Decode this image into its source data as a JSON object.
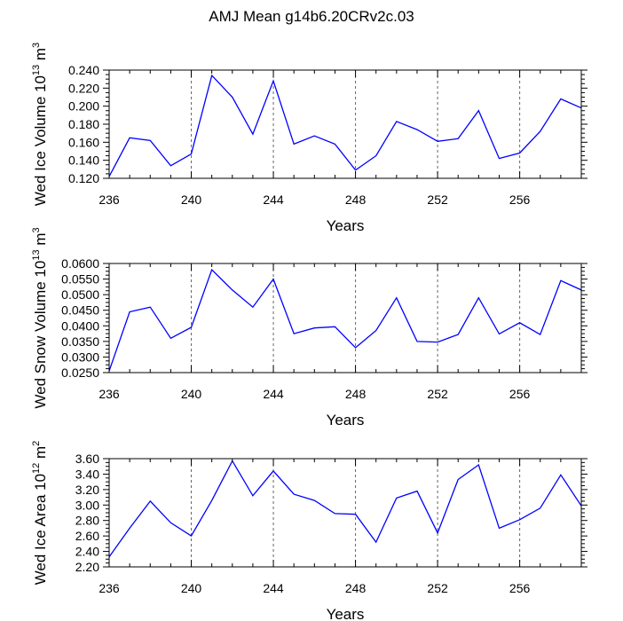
{
  "figure_title": "AMJ Mean g14b6.20CRv2c.03",
  "colors": {
    "line": "#0000ff",
    "axis": "#000000",
    "grid": "#666666"
  },
  "chart_data": [
    {
      "type": "line",
      "ylabel_main": "Wed Ice Volume 10",
      "ylabel_sup": "13",
      "ylabel_unit": " m",
      "ylabel_unit_sup": "3",
      "xlabel": "Years",
      "xlim": [
        236,
        259
      ],
      "ylim": [
        0.12,
        0.24
      ],
      "xticks": [
        236,
        240,
        244,
        248,
        252,
        256
      ],
      "xtick_labels": [
        "236",
        "240",
        "244",
        "248",
        "252",
        "256"
      ],
      "yticks": [
        0.12,
        0.14,
        0.16,
        0.18,
        0.2,
        0.22,
        0.24
      ],
      "ytick_labels": [
        "0.120",
        "0.140",
        "0.160",
        "0.180",
        "0.200",
        "0.220",
        "0.240"
      ],
      "grid_x": [
        240,
        244,
        248,
        252,
        256
      ],
      "x": [
        236,
        237,
        238,
        239,
        240,
        241,
        242,
        243,
        244,
        245,
        246,
        247,
        248,
        249,
        250,
        251,
        252,
        253,
        254,
        255,
        256,
        257,
        258,
        259
      ],
      "values": [
        0.122,
        0.165,
        0.162,
        0.134,
        0.147,
        0.234,
        0.21,
        0.169,
        0.228,
        0.158,
        0.167,
        0.158,
        0.129,
        0.145,
        0.183,
        0.174,
        0.161,
        0.164,
        0.195,
        0.142,
        0.148,
        0.172,
        0.208,
        0.198
      ]
    },
    {
      "type": "line",
      "ylabel_main": "Wed Snow Volume 10",
      "ylabel_sup": "13",
      "ylabel_unit": " m",
      "ylabel_unit_sup": "3",
      "xlabel": "Years",
      "xlim": [
        236,
        259
      ],
      "ylim": [
        0.025,
        0.06
      ],
      "xticks": [
        236,
        240,
        244,
        248,
        252,
        256
      ],
      "xtick_labels": [
        "236",
        "240",
        "244",
        "248",
        "252",
        "256"
      ],
      "yticks": [
        0.025,
        0.03,
        0.035,
        0.04,
        0.045,
        0.05,
        0.055,
        0.06
      ],
      "ytick_labels": [
        "0.0250",
        "0.0300",
        "0.0350",
        "0.0400",
        "0.0450",
        "0.0500",
        "0.0550",
        "0.0600"
      ],
      "grid_x": [
        240,
        244,
        248,
        252,
        256
      ],
      "x": [
        236,
        237,
        238,
        239,
        240,
        241,
        242,
        243,
        244,
        245,
        246,
        247,
        248,
        249,
        250,
        251,
        252,
        253,
        254,
        255,
        256,
        257,
        258,
        259
      ],
      "values": [
        0.0255,
        0.0445,
        0.046,
        0.036,
        0.0395,
        0.058,
        0.0515,
        0.046,
        0.055,
        0.0375,
        0.0393,
        0.0397,
        0.033,
        0.0385,
        0.049,
        0.035,
        0.0348,
        0.0372,
        0.049,
        0.0374,
        0.041,
        0.0372,
        0.0545,
        0.0515
      ]
    },
    {
      "type": "line",
      "ylabel_main": "Wed Ice Area 10",
      "ylabel_sup": "12",
      "ylabel_unit": " m",
      "ylabel_unit_sup": "2",
      "xlabel": "Years",
      "xlim": [
        236,
        259
      ],
      "ylim": [
        2.2,
        3.6
      ],
      "xticks": [
        236,
        240,
        244,
        248,
        252,
        256
      ],
      "xtick_labels": [
        "236",
        "240",
        "244",
        "248",
        "252",
        "256"
      ],
      "yticks": [
        2.2,
        2.4,
        2.6,
        2.8,
        3.0,
        3.2,
        3.4,
        3.6
      ],
      "ytick_labels": [
        "2.20",
        "2.40",
        "2.60",
        "2.80",
        "3.00",
        "3.20",
        "3.40",
        "3.60"
      ],
      "grid_x": [
        240,
        244,
        248,
        252,
        256
      ],
      "x": [
        236,
        237,
        238,
        239,
        240,
        241,
        242,
        243,
        244,
        245,
        246,
        247,
        248,
        249,
        250,
        251,
        252,
        253,
        254,
        255,
        256,
        257,
        258,
        259
      ],
      "values": [
        2.33,
        2.7,
        3.05,
        2.77,
        2.6,
        3.06,
        3.57,
        3.12,
        3.44,
        3.14,
        3.06,
        2.89,
        2.88,
        2.52,
        3.09,
        3.18,
        2.64,
        3.33,
        3.52,
        2.7,
        2.81,
        2.96,
        3.39,
        2.99
      ]
    }
  ]
}
